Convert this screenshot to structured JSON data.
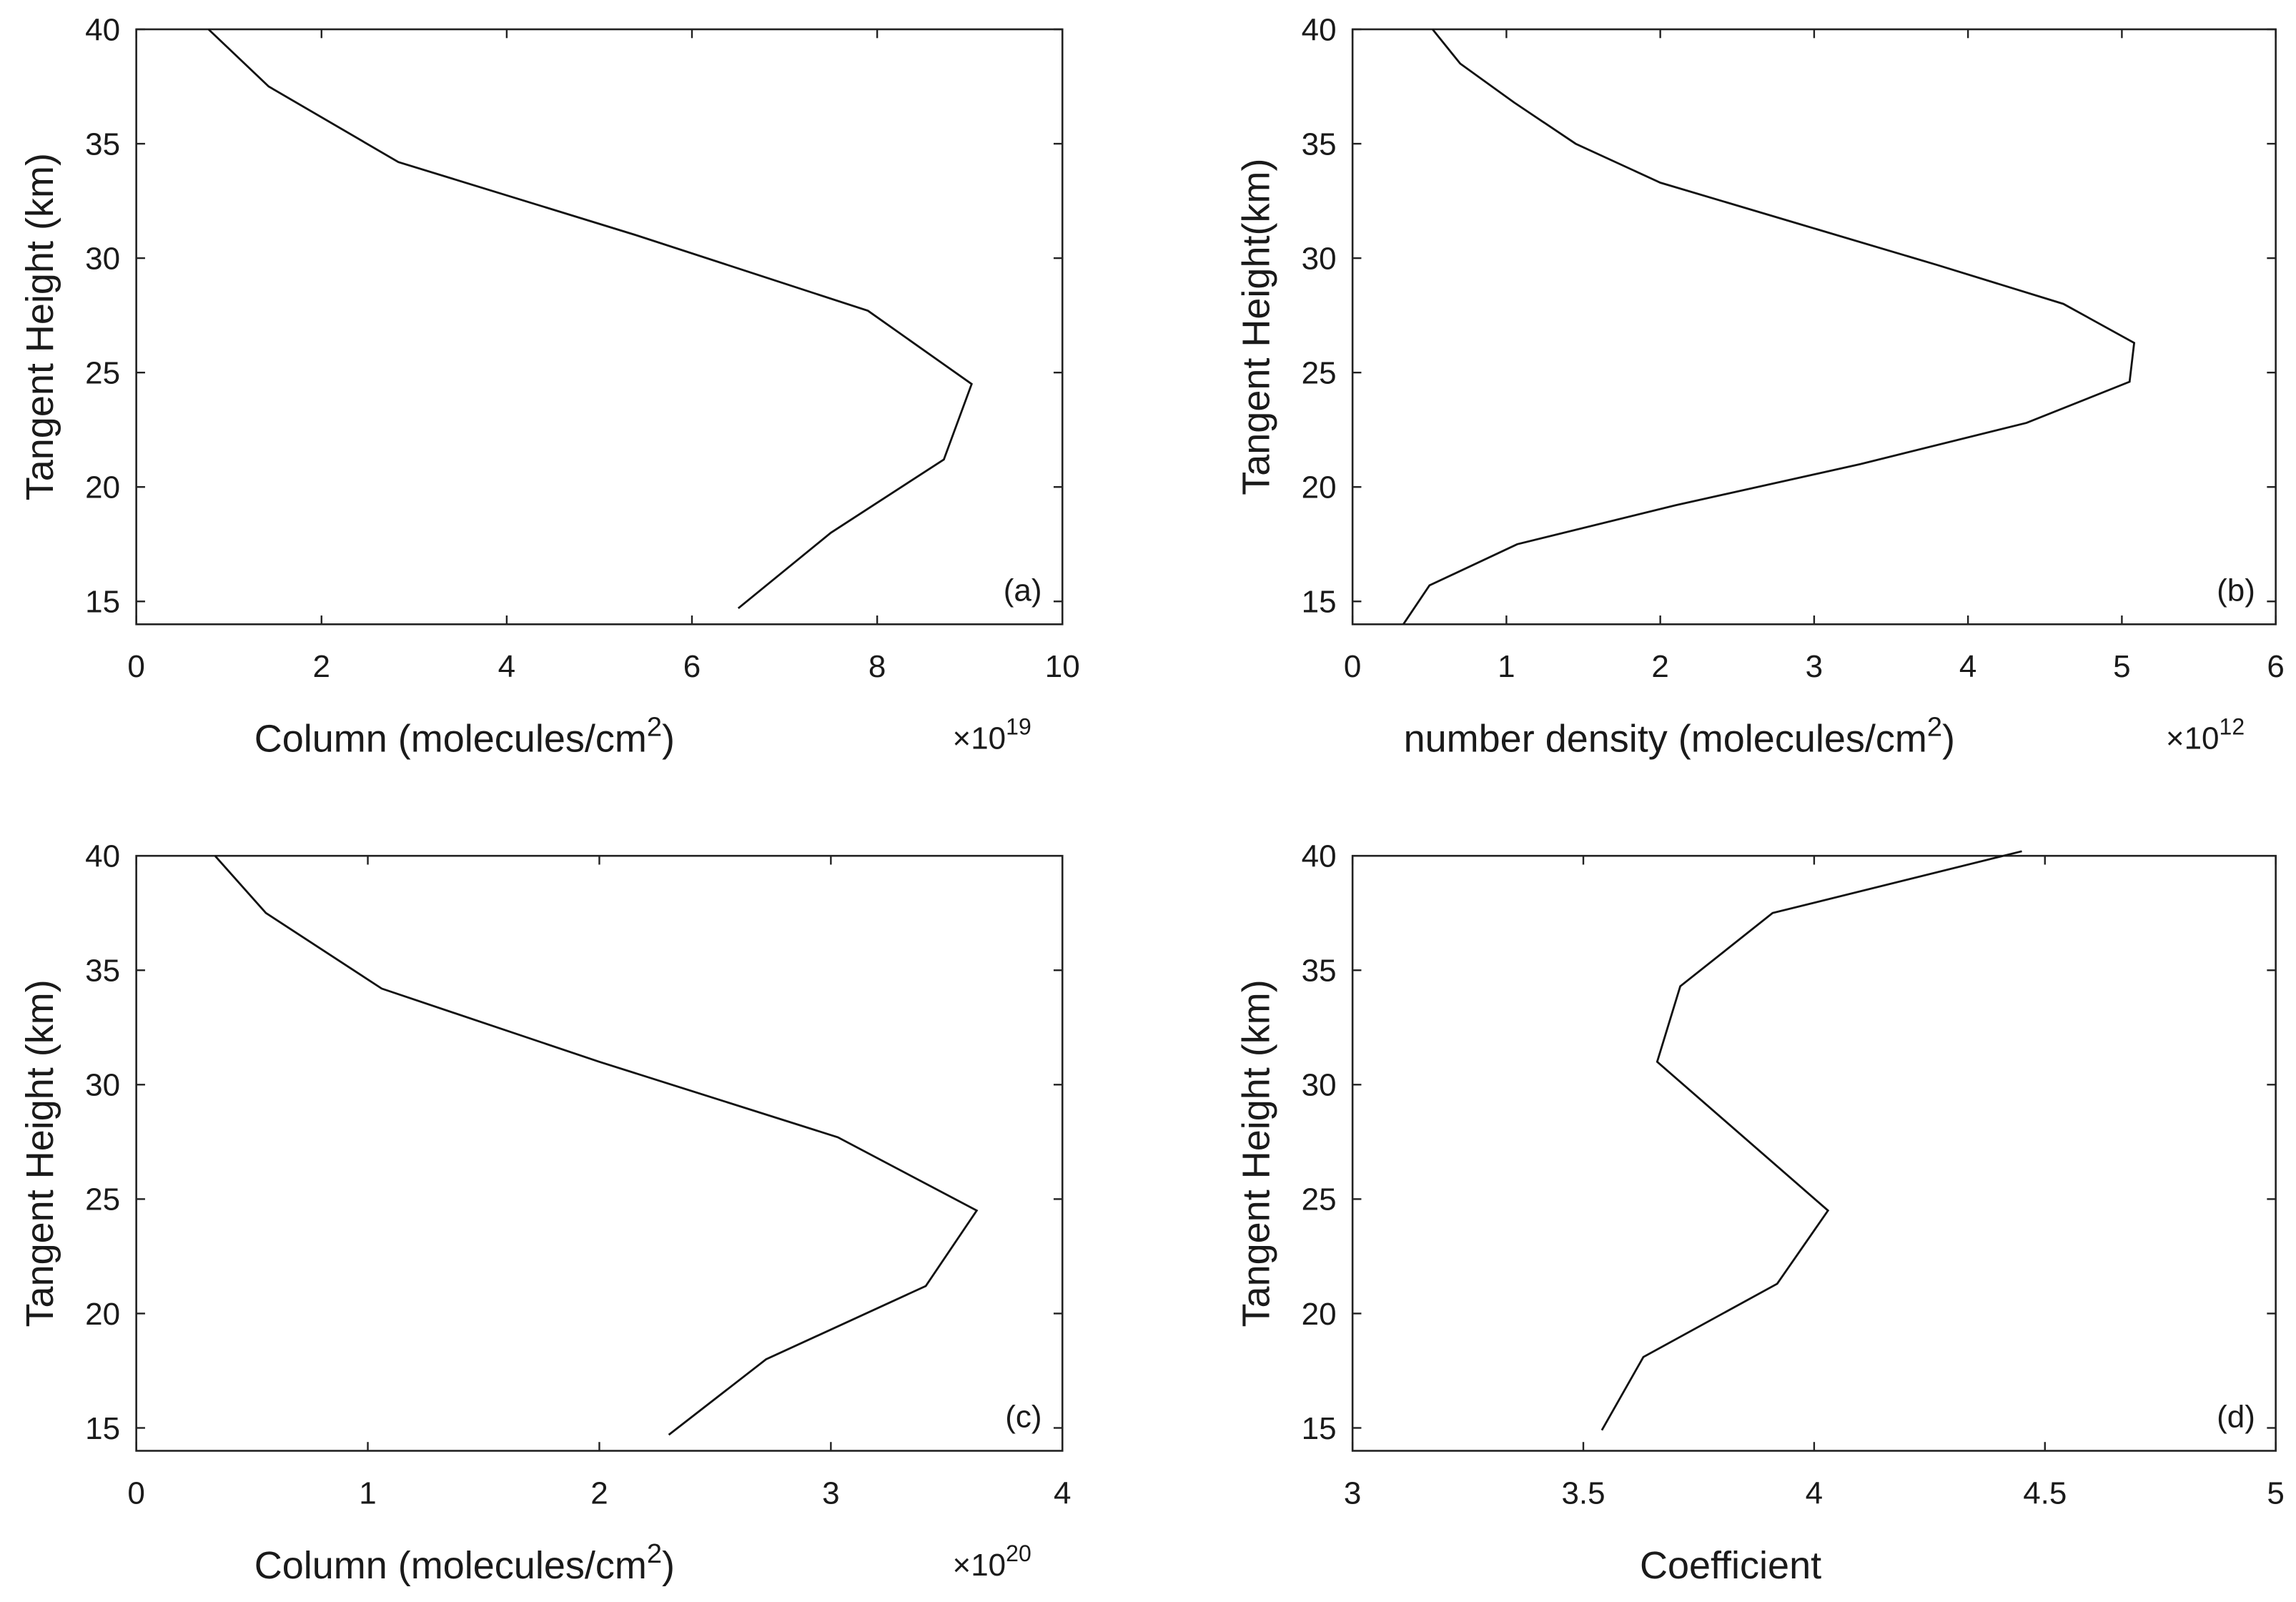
{
  "chart_data": [
    {
      "type": "line",
      "panel_label": "(a)",
      "xlabel": "Column (molecules/cm",
      "xlabel_sup": "2",
      "xlabel_end": ")",
      "ylabel": "Tangent Height (km)",
      "exponent_base": "×10",
      "exponent_power": "19",
      "xlim": [
        0,
        10
      ],
      "ylim": [
        14,
        40
      ],
      "xticks": [
        0,
        2,
        4,
        6,
        8,
        10
      ],
      "yticks": [
        15,
        20,
        25,
        30,
        35,
        40
      ],
      "grid": false,
      "series": [
        {
          "x": [
            0.78,
            1.43,
            2.83,
            5.4,
            7.9,
            9.02,
            8.72,
            7.5,
            6.5
          ],
          "y": [
            40,
            37.5,
            34.2,
            31.0,
            27.7,
            24.5,
            21.2,
            18.0,
            14.7
          ]
        }
      ]
    },
    {
      "type": "line",
      "panel_label": "(b)",
      "xlabel": "number density (molecules/cm",
      "xlabel_sup": "2",
      "xlabel_end": ")",
      "ylabel": "Tangent Height(km)",
      "exponent_base": "×10",
      "exponent_power": "12",
      "xlim": [
        0,
        6
      ],
      "ylim": [
        14,
        40
      ],
      "xticks": [
        0,
        1,
        2,
        3,
        4,
        5,
        6
      ],
      "yticks": [
        15,
        20,
        25,
        30,
        35,
        40
      ],
      "grid": false,
      "series": [
        {
          "x": [
            0.52,
            0.7,
            1.05,
            1.45,
            2.0,
            2.9,
            3.8,
            4.62,
            5.08,
            5.05,
            4.38,
            3.3,
            2.1,
            1.07,
            0.5,
            0.33
          ],
          "y": [
            40,
            38.5,
            36.8,
            35.0,
            33.3,
            31.5,
            29.7,
            28.0,
            26.3,
            24.6,
            22.8,
            21.0,
            19.2,
            17.5,
            15.7,
            14
          ]
        }
      ]
    },
    {
      "type": "line",
      "panel_label": "(c)",
      "xlabel": "Column (molecules/cm",
      "xlabel_sup": "2",
      "xlabel_end": ")",
      "ylabel": "Tangent Height (km)",
      "exponent_base": "×10",
      "exponent_power": "20",
      "xlim": [
        0,
        4
      ],
      "ylim": [
        14,
        40
      ],
      "xticks": [
        0,
        1,
        2,
        3,
        4
      ],
      "yticks": [
        15,
        20,
        25,
        30,
        35,
        40
      ],
      "grid": false,
      "series": [
        {
          "x": [
            0.34,
            0.56,
            1.06,
            2.0,
            3.03,
            3.63,
            3.41,
            2.72,
            2.3
          ],
          "y": [
            40,
            37.5,
            34.2,
            31.0,
            27.7,
            24.5,
            21.2,
            18.0,
            14.7
          ]
        }
      ]
    },
    {
      "type": "line",
      "panel_label": "(d)",
      "xlabel": "Coefficient",
      "xlabel_sup": "",
      "xlabel_end": "",
      "ylabel": "Tangent Height (km)",
      "exponent_base": "",
      "exponent_power": "",
      "xlim": [
        3,
        5
      ],
      "ylim": [
        14,
        40
      ],
      "xticks": [
        3,
        3.5,
        4,
        4.5,
        5
      ],
      "yticks": [
        15,
        20,
        25,
        30,
        35,
        40
      ],
      "grid": false,
      "series": [
        {
          "x": [
            4.45,
            3.91,
            3.71,
            3.66,
            4.03,
            3.92,
            3.63,
            3.54
          ],
          "y": [
            40.2,
            37.5,
            34.3,
            31.0,
            24.5,
            21.3,
            18.1,
            14.9
          ]
        }
      ]
    }
  ]
}
